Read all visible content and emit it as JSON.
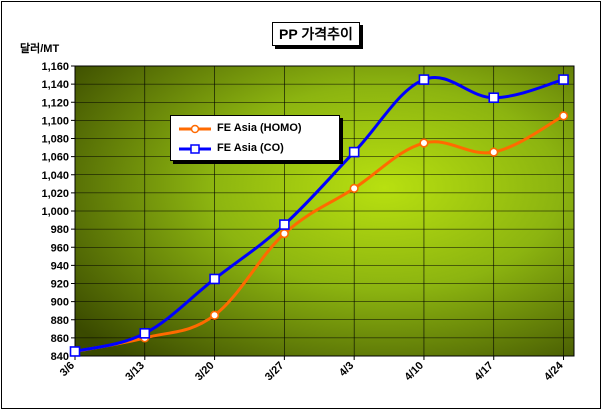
{
  "chart_data": {
    "type": "line",
    "title": "PP 가격추이",
    "ylabel": "달러/MT",
    "xlabel": "",
    "categories": [
      "3/6",
      "3/13",
      "3/20",
      "3/27",
      "4/3",
      "4/10",
      "4/17",
      "4/24"
    ],
    "ylim": [
      840,
      1160
    ],
    "yticks": [
      840,
      860,
      880,
      900,
      920,
      940,
      960,
      980,
      1000,
      1020,
      1040,
      1060,
      1080,
      1100,
      1120,
      1140,
      1160
    ],
    "ytick_labels": [
      "840",
      "860",
      "880",
      "900",
      "920",
      "940",
      "960",
      "980",
      "1,000",
      "1,020",
      "1,040",
      "1,060",
      "1,080",
      "1,100",
      "1,120",
      "1,140",
      "1,160"
    ],
    "grid": true,
    "legend_position": "upper-left-inside",
    "series": [
      {
        "name": "FE Asia (HOMO)",
        "color": "#ff6a00",
        "marker": "circle",
        "values": [
          845,
          860,
          885,
          975,
          1025,
          1075,
          1065,
          1105
        ]
      },
      {
        "name": "FE Asia (CO)",
        "color": "#0000ff",
        "marker": "square",
        "values": [
          845,
          865,
          925,
          985,
          1065,
          1145,
          1125,
          1145
        ]
      }
    ]
  }
}
